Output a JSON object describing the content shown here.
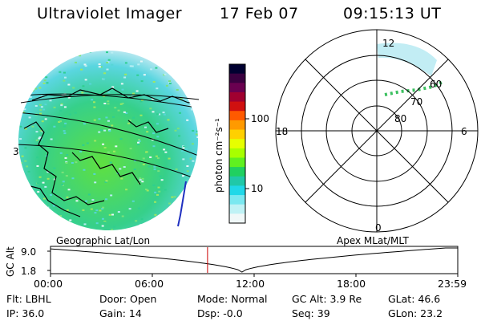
{
  "header": {
    "title": "Ultraviolet Imager",
    "date": "17 Feb 07",
    "time": "09:15:13 UT"
  },
  "colorbar": {
    "label": "photon cm⁻²s⁻¹",
    "ticks": [
      "100",
      "10"
    ],
    "colors": [
      "#000030",
      "#3a0040",
      "#6a0050",
      "#a00030",
      "#d01010",
      "#ff5a00",
      "#ff9a00",
      "#ffd000",
      "#e6ff00",
      "#a8ff00",
      "#60f020",
      "#20d060",
      "#20c8a8",
      "#20d8e8",
      "#7ae8f0",
      "#bff2f5",
      "#f0f8f8"
    ]
  },
  "left_panel": {
    "label": "Geographic Lat/Lon",
    "side_mark": "3"
  },
  "polar_plot": {
    "label": "Apex MLat/MLT",
    "mlt_labels": {
      "top": "12",
      "bottom": "0",
      "left": "18",
      "right": "6"
    },
    "lat_labels": [
      "60",
      "70",
      "80"
    ]
  },
  "timeline": {
    "axis_label": "GC Alt",
    "y_ticks": [
      "9.0",
      "1.8"
    ],
    "x_ticks": [
      "00:00",
      "06:00",
      "12:00",
      "18:00",
      "23:59"
    ],
    "current_time_fraction": 0.3856,
    "marker_color": "#cc0000"
  },
  "info": {
    "flt": "Flt: LBHL",
    "ip": "IP: 36.0",
    "door": "Door: Open",
    "gain": "Gain: 14",
    "mode": "Mode: Normal",
    "dsp": "Dsp:    -0.0",
    "gc_alt": "GC Alt: 3.9 Re",
    "seq": "Seq: 39",
    "glat": "GLat:   46.6",
    "glon": "GLon:   23.2"
  }
}
